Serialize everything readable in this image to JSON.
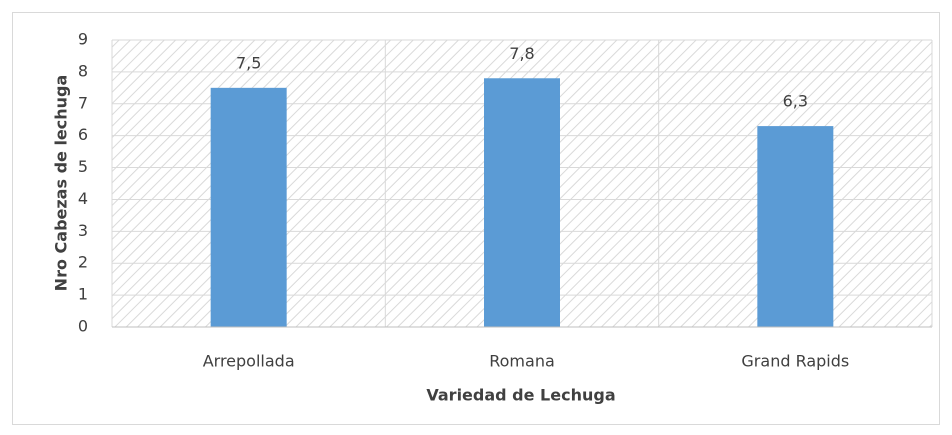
{
  "chart_data": {
    "type": "bar",
    "categories": [
      "Arrepollada",
      "Romana",
      "Grand Rapids"
    ],
    "values": [
      7.5,
      7.8,
      6.3
    ],
    "value_labels": [
      "7,5",
      "7,8",
      "6,3"
    ],
    "color": "#5b9bd5",
    "xlabel": "Variedad de Lechuga",
    "ylabel": "Nro Cabezas de lechuga",
    "ylim": [
      0,
      9
    ],
    "yticks": [
      0,
      1,
      2,
      3,
      4,
      5,
      6,
      7,
      8,
      9
    ],
    "grid": true
  }
}
